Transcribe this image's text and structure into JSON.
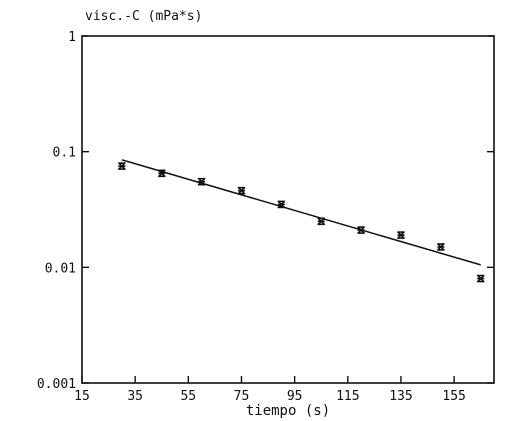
{
  "chart_data": {
    "type": "scatter",
    "title": "visc.-C (mPa*s)",
    "xlabel": "tiempo (s)",
    "ylabel": "",
    "xlim": [
      15,
      170
    ],
    "ylim": [
      0.001,
      1
    ],
    "yscale": "log",
    "x_ticks": [
      15,
      35,
      55,
      75,
      95,
      115,
      135,
      155
    ],
    "y_ticks": [
      0.001,
      0.01,
      0.1,
      1
    ],
    "x_tick_labels": [
      "15",
      "35",
      "55",
      "75",
      "95",
      "115",
      "135",
      "155"
    ],
    "y_tick_labels": [
      "0.001",
      "0.01",
      "0.1",
      "1"
    ],
    "grid": false,
    "series": [
      {
        "marker": "asterisk",
        "x": [
          30,
          45,
          60,
          75,
          90,
          105,
          120,
          135,
          150,
          165
        ],
        "y": [
          0.075,
          0.065,
          0.055,
          0.046,
          0.035,
          0.025,
          0.021,
          0.019,
          0.015,
          0.008
        ]
      }
    ],
    "fit_line": {
      "x": [
        30,
        165
      ],
      "y": [
        0.085,
        0.0105
      ]
    },
    "colors": {
      "ink": "#111111",
      "background": "#ffffff"
    }
  }
}
